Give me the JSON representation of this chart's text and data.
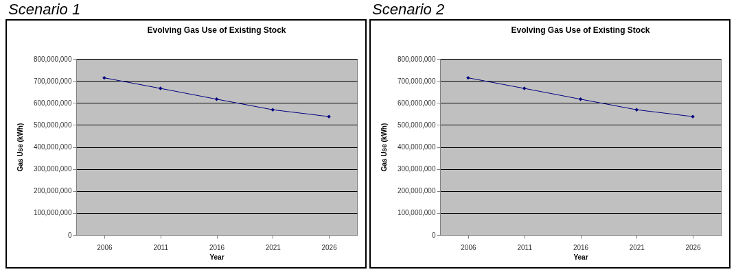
{
  "chart_data": [
    {
      "type": "line",
      "title": "Evolving Gas Use of Existing Stock",
      "annotations": [
        "Scenario 1"
      ],
      "xlabel": "Year",
      "ylabel": "Gas Use (kWh)",
      "categories": [
        "2006",
        "2011",
        "2016",
        "2021",
        "2026"
      ],
      "series": [
        {
          "color": "#000080",
          "values": [
            714000000,
            666000000,
            617000000,
            569000000,
            538000000
          ]
        }
      ],
      "ylim": [
        0,
        800000000
      ],
      "yticks": [
        {
          "value": 0,
          "label": "0"
        },
        {
          "value": 100000000,
          "label": "100,000,000"
        },
        {
          "value": 200000000,
          "label": "200,000,000"
        },
        {
          "value": 300000000,
          "label": "300,000,000"
        },
        {
          "value": 400000000,
          "label": "400,000,000"
        },
        {
          "value": 500000000,
          "label": "500,000,000"
        },
        {
          "value": 600000000,
          "label": "600,000,000"
        },
        {
          "value": 700000000,
          "label": "700,000,000"
        },
        {
          "value": 800000000,
          "label": "800,000,000"
        }
      ],
      "grid": "y",
      "marker": "diamond",
      "line_style": "solid",
      "legend": false
    },
    {
      "type": "line",
      "title": "Evolving Gas Use of Existing Stock",
      "annotations": [
        "Scenario 2"
      ],
      "xlabel": "Year",
      "ylabel": "Gas Use (kWh)",
      "categories": [
        "2006",
        "2011",
        "2016",
        "2021",
        "2026"
      ],
      "series": [
        {
          "color": "#000080",
          "values": [
            714000000,
            666000000,
            617000000,
            569000000,
            538000000
          ]
        }
      ],
      "ylim": [
        0,
        800000000
      ],
      "yticks": [
        {
          "value": 0,
          "label": "0"
        },
        {
          "value": 100000000,
          "label": "100,000,000"
        },
        {
          "value": 200000000,
          "label": "200,000,000"
        },
        {
          "value": 300000000,
          "label": "300,000,000"
        },
        {
          "value": 400000000,
          "label": "400,000,000"
        },
        {
          "value": 500000000,
          "label": "500,000,000"
        },
        {
          "value": 600000000,
          "label": "600,000,000"
        },
        {
          "value": 700000000,
          "label": "700,000,000"
        },
        {
          "value": 800000000,
          "label": "800,000,000"
        }
      ],
      "grid": "y",
      "marker": "diamond",
      "line_style": "solid",
      "legend": false
    }
  ]
}
